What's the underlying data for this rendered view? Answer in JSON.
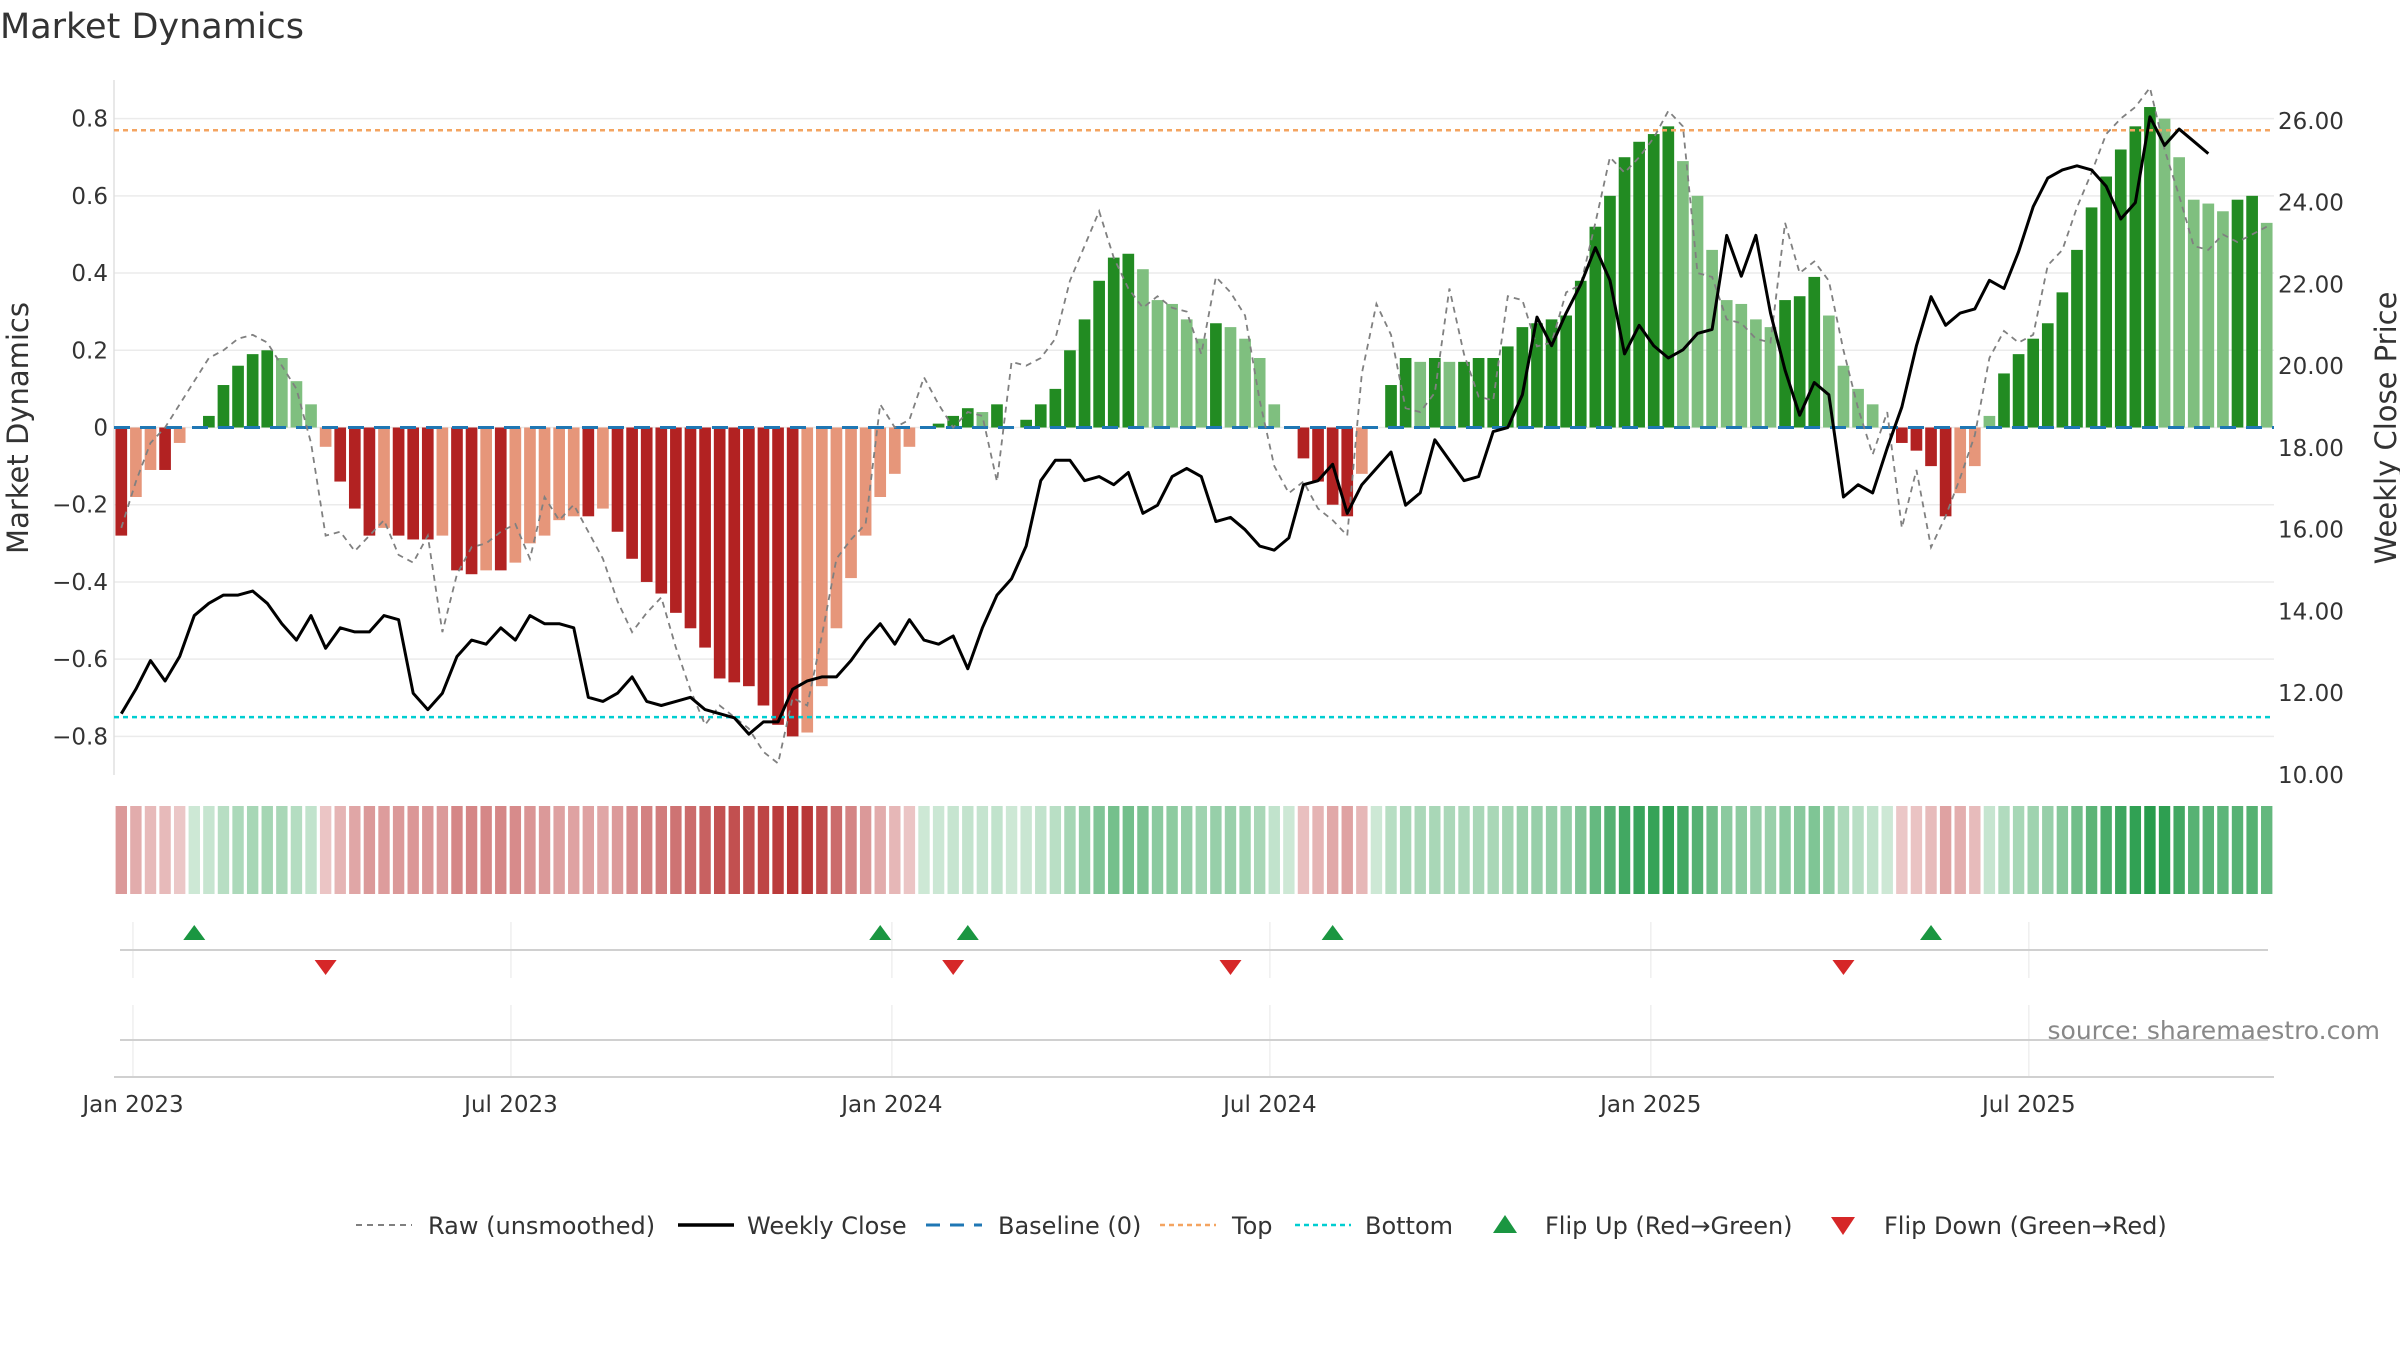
{
  "chart_data": {
    "type": "bar",
    "title": "Market Dynamics",
    "ylabel": "Market Dynamics",
    "y2label": "Weekly Close Price",
    "ylim": [
      -0.9,
      0.9
    ],
    "y2lim": [
      10,
      27
    ],
    "yticks": [
      "0.8",
      "0.6",
      "0.4",
      "0.2",
      "0",
      "−0.2",
      "−0.4",
      "−0.6",
      "−0.8"
    ],
    "yticks_values": [
      0.8,
      0.6,
      0.4,
      0.2,
      0,
      -0.2,
      -0.4,
      -0.6,
      -0.8
    ],
    "y2ticks": [
      "26.00",
      "24.00",
      "22.00",
      "20.00",
      "18.00",
      "16.00",
      "14.00",
      "12.00",
      "10.00"
    ],
    "y2ticks_values": [
      26,
      24,
      22,
      20,
      18,
      16,
      14,
      12,
      10
    ],
    "xticks": [
      "Jan 2023",
      "Jul 2023",
      "Jan 2024",
      "Jul 2024",
      "Jan 2025",
      "Jul 2025"
    ],
    "xticks_index": [
      0.8,
      26.7,
      52.8,
      78.7,
      104.8,
      130.7
    ],
    "levels": {
      "top": 0.77,
      "bottom": -0.75,
      "baseline": 0
    },
    "values": [
      -0.28,
      -0.18,
      -0.11,
      -0.11,
      -0.04,
      0.0,
      0.03,
      0.11,
      0.16,
      0.19,
      0.2,
      0.18,
      0.12,
      0.06,
      -0.05,
      -0.14,
      -0.21,
      -0.28,
      -0.26,
      -0.28,
      -0.29,
      -0.29,
      -0.28,
      -0.37,
      -0.38,
      -0.37,
      -0.37,
      -0.35,
      -0.3,
      -0.28,
      -0.24,
      -0.23,
      -0.23,
      -0.21,
      -0.27,
      -0.34,
      -0.4,
      -0.43,
      -0.48,
      -0.52,
      -0.57,
      -0.65,
      -0.66,
      -0.67,
      -0.72,
      -0.77,
      -0.8,
      -0.79,
      -0.67,
      -0.52,
      -0.39,
      -0.28,
      -0.18,
      -0.12,
      -0.05,
      0.0,
      0.01,
      0.03,
      0.05,
      0.04,
      0.06,
      0.0,
      0.02,
      0.06,
      0.1,
      0.2,
      0.28,
      0.38,
      0.44,
      0.45,
      0.41,
      0.33,
      0.32,
      0.28,
      0.23,
      0.27,
      0.26,
      0.23,
      0.18,
      0.06,
      0.0,
      -0.08,
      -0.14,
      -0.2,
      -0.23,
      -0.12,
      0.0,
      0.11,
      0.18,
      0.17,
      0.18,
      0.17,
      0.17,
      0.18,
      0.18,
      0.21,
      0.26,
      0.27,
      0.28,
      0.29,
      0.38,
      0.52,
      0.6,
      0.7,
      0.74,
      0.76,
      0.78,
      0.69,
      0.6,
      0.46,
      0.33,
      0.32,
      0.28,
      0.26,
      0.33,
      0.34,
      0.39,
      0.29,
      0.16,
      0.1,
      0.06,
      0.0,
      -0.04,
      -0.06,
      -0.1,
      -0.23,
      -0.17,
      -0.1,
      0.03,
      0.14,
      0.19,
      0.23,
      0.27,
      0.35,
      0.46,
      0.57,
      0.65,
      0.72,
      0.78,
      0.83,
      0.8,
      0.7,
      0.59,
      0.58,
      0.56,
      0.59,
      0.6,
      0.53
    ],
    "series": [
      {
        "name": "Raw (unsmoothed)",
        "values": [
          -0.26,
          -0.14,
          -0.04,
          0.0,
          0.06,
          0.12,
          0.18,
          0.2,
          0.23,
          0.24,
          0.22,
          0.16,
          0.1,
          -0.04,
          -0.28,
          -0.27,
          -0.32,
          -0.28,
          -0.24,
          -0.33,
          -0.35,
          -0.28,
          -0.53,
          -0.38,
          -0.31,
          -0.3,
          -0.27,
          -0.25,
          -0.34,
          -0.18,
          -0.24,
          -0.2,
          -0.27,
          -0.34,
          -0.45,
          -0.53,
          -0.48,
          -0.44,
          -0.57,
          -0.68,
          -0.77,
          -0.72,
          -0.75,
          -0.78,
          -0.84,
          -0.87,
          -0.7,
          -0.72,
          -0.54,
          -0.34,
          -0.29,
          -0.25,
          0.06,
          0.0,
          0.02,
          0.13,
          0.06,
          0.0,
          0.04,
          0.03,
          -0.14,
          0.17,
          0.16,
          0.18,
          0.23,
          0.38,
          0.47,
          0.56,
          0.44,
          0.36,
          0.31,
          0.34,
          0.31,
          0.3,
          0.19,
          0.39,
          0.35,
          0.29,
          0.07,
          -0.1,
          -0.17,
          -0.14,
          -0.21,
          -0.24,
          -0.28,
          0.14,
          0.32,
          0.24,
          0.05,
          0.04,
          0.09,
          0.36,
          0.19,
          0.08,
          0.07,
          0.34,
          0.33,
          0.21,
          0.22,
          0.35,
          0.37,
          0.53,
          0.7,
          0.66,
          0.7,
          0.75,
          0.82,
          0.78,
          0.4,
          0.39,
          0.28,
          0.27,
          0.23,
          0.22,
          0.53,
          0.4,
          0.43,
          0.38,
          0.2,
          0.05,
          -0.07,
          0.04,
          -0.26,
          -0.11,
          -0.31,
          -0.23,
          -0.13,
          -0.02,
          0.18,
          0.25,
          0.22,
          0.24,
          0.42,
          0.46,
          0.57,
          0.66,
          0.76,
          0.8,
          0.83,
          0.88,
          0.72,
          0.6,
          0.47,
          0.46,
          0.5,
          0.48,
          0.5,
          0.52
        ]
      },
      {
        "name": "Weekly Close",
        "values": [
          11.5,
          12.1,
          12.8,
          12.3,
          12.9,
          13.9,
          14.2,
          14.4,
          14.4,
          14.5,
          14.2,
          13.7,
          13.3,
          13.9,
          13.1,
          13.6,
          13.5,
          13.5,
          13.9,
          13.8,
          12.0,
          11.6,
          12.0,
          12.9,
          13.3,
          13.2,
          13.6,
          13.3,
          13.9,
          13.7,
          13.7,
          13.6,
          11.9,
          11.8,
          12.0,
          12.4,
          11.8,
          11.7,
          11.8,
          11.9,
          11.6,
          11.5,
          11.4,
          11.0,
          11.3,
          11.3,
          12.1,
          12.3,
          12.4,
          12.4,
          12.8,
          13.3,
          13.7,
          13.2,
          13.8,
          13.3,
          13.2,
          13.4,
          12.6,
          13.6,
          14.4,
          14.8,
          15.6,
          17.2,
          17.7,
          17.7,
          17.2,
          17.3,
          17.1,
          17.4,
          16.4,
          16.6,
          17.3,
          17.5,
          17.3,
          16.2,
          16.3,
          16.0,
          15.6,
          15.5,
          15.8,
          17.1,
          17.2,
          17.6,
          16.4,
          17.1,
          17.5,
          17.9,
          16.6,
          16.9,
          18.2,
          17.7,
          17.2,
          17.3,
          18.4,
          18.5,
          19.3,
          21.2,
          20.5,
          21.3,
          22.0,
          22.9,
          22.1,
          20.3,
          21.0,
          20.5,
          20.2,
          20.4,
          20.8,
          20.9,
          23.2,
          22.2,
          23.2,
          21.3,
          19.9,
          18.8,
          19.6,
          19.3,
          16.8,
          17.1,
          16.9,
          18.0,
          19.0,
          20.5,
          21.7,
          21.0,
          21.3,
          21.4,
          22.1,
          21.9,
          22.8,
          23.9,
          24.6,
          24.8,
          24.9,
          24.8,
          24.4,
          23.6,
          24.0,
          26.1,
          25.4,
          25.8,
          25.5,
          25.2
        ]
      }
    ],
    "levels_bar": [
      -0.28,
      -0.18,
      -0.11,
      -0.11,
      -0.04,
      0.0,
      0.03,
      0.11,
      0.16,
      0.19,
      0.2,
      0.18,
      0.12,
      0.06,
      -0.05,
      -0.14,
      -0.21,
      -0.28,
      -0.26,
      -0.28,
      -0.29,
      -0.29,
      -0.28,
      -0.37,
      -0.38,
      -0.37,
      -0.37,
      -0.35,
      -0.3,
      -0.28,
      -0.24,
      -0.23,
      -0.23,
      -0.21,
      -0.27,
      -0.34,
      -0.4,
      -0.43,
      -0.48,
      -0.52,
      -0.57,
      -0.65,
      -0.66,
      -0.67,
      -0.72,
      -0.77,
      -0.8,
      -0.79,
      -0.67,
      -0.52,
      -0.39,
      -0.28,
      -0.18,
      -0.12,
      -0.05,
      0.0,
      0.01,
      0.03,
      0.05,
      0.04,
      0.06,
      0.0,
      0.02,
      0.06,
      0.1,
      0.2,
      0.28,
      0.38,
      0.44,
      0.45,
      0.41,
      0.33,
      0.32,
      0.28,
      0.23,
      0.27,
      0.26,
      0.23,
      0.18,
      0.06,
      0.0,
      -0.08,
      -0.14,
      -0.2,
      -0.23,
      -0.12,
      0.0,
      0.11,
      0.18,
      0.17,
      0.18,
      0.17,
      0.17,
      0.18,
      0.18,
      0.21,
      0.26,
      0.27,
      0.28,
      0.29,
      0.38,
      0.52,
      0.6,
      0.7,
      0.74,
      0.76,
      0.78,
      0.69,
      0.6,
      0.46,
      0.33,
      0.32,
      0.28,
      0.26,
      0.33,
      0.34,
      0.39,
      0.29,
      0.16,
      0.1,
      0.06,
      0.0,
      -0.04,
      -0.06,
      -0.1,
      -0.23,
      -0.17,
      -0.1,
      0.03,
      0.14,
      0.19,
      0.23,
      0.27,
      0.35,
      0.46,
      0.57,
      0.65,
      0.72,
      0.78,
      0.83,
      0.8,
      0.7,
      0.59,
      0.58,
      0.56,
      0.59,
      0.6,
      0.53
    ],
    "flips_up_index": [
      5,
      52,
      58,
      83,
      124
    ],
    "flips_down_index": [
      14,
      57,
      76,
      118
    ],
    "legend": [
      "Raw (unsmoothed)",
      "Weekly Close",
      "Baseline (0)",
      "Top",
      "Bottom",
      "Flip Up (Red→Green)",
      "Flip Down (Green→Red)"
    ],
    "legend_placement": "bottom-center",
    "source": "source: sharemaestro.com",
    "grid": true
  },
  "colors": {
    "pos_strong": "#228b22",
    "pos_light": "#7fbf7f",
    "neg_strong": "#b22222",
    "neg_light": "#e6967a",
    "raw": "#808080",
    "close": "#000000",
    "baseline": "#1f77b4",
    "top": "#f4a460",
    "bottom": "#00ced1",
    "flip_up": "#1a9641",
    "flip_down": "#d62728"
  }
}
